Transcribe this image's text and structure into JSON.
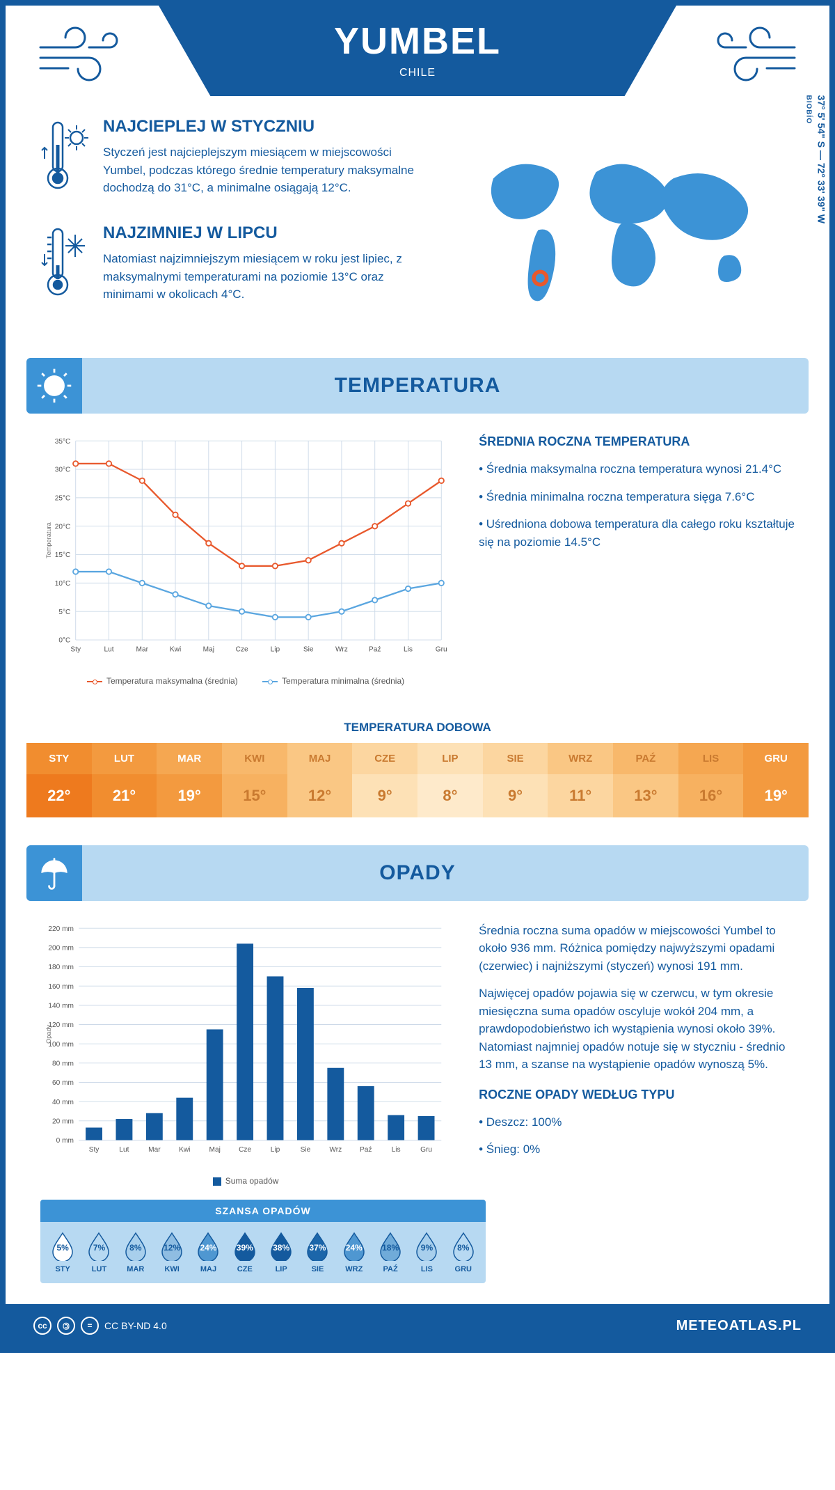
{
  "header": {
    "city": "YUMBEL",
    "country": "CHILE",
    "coords": "37° 5' 54\" S — 72° 33' 39\" W",
    "region": "BIOBÍO"
  },
  "facts": {
    "hot": {
      "title": "NAJCIEPLEJ W STYCZNIU",
      "text": "Styczeń jest najcieplejszym miesiącem w miejscowości Yumbel, podczas którego średnie temperatury maksymalne dochodzą do 31°C, a minimalne osiągają 12°C."
    },
    "cold": {
      "title": "NAJZIMNIEJ W LIPCU",
      "text": "Natomiast najzimniejszym miesiącem w roku jest lipiec, z maksymalnymi temperaturami na poziomie 13°C oraz minimami w okolicach 4°C."
    }
  },
  "sections": {
    "temperature": "TEMPERATURA",
    "precipitation": "OPADY"
  },
  "months": [
    "Sty",
    "Lut",
    "Mar",
    "Kwi",
    "Maj",
    "Cze",
    "Lip",
    "Sie",
    "Wrz",
    "Paź",
    "Lis",
    "Gru"
  ],
  "months_upper": [
    "STY",
    "LUT",
    "MAR",
    "KWI",
    "MAJ",
    "CZE",
    "LIP",
    "SIE",
    "WRZ",
    "PAŹ",
    "LIS",
    "GRU"
  ],
  "temp_chart": {
    "type": "line",
    "y_label": "Temperatura",
    "y_ticks": [
      0,
      5,
      10,
      15,
      20,
      25,
      30,
      35
    ],
    "y_tick_suffix": "°C",
    "ylim": [
      0,
      35
    ],
    "series": {
      "max": {
        "label": "Temperatura maksymalna (średnia)",
        "color": "#e8582c",
        "values": [
          31,
          31,
          28,
          22,
          17,
          13,
          13,
          14,
          17,
          20,
          24,
          28
        ]
      },
      "min": {
        "label": "Temperatura minimalna (średnia)",
        "color": "#5aa6e0",
        "values": [
          12,
          12,
          10,
          8,
          6,
          5,
          4,
          4,
          5,
          7,
          9,
          10
        ]
      }
    },
    "grid_color": "#ccd9e8",
    "background": "#ffffff",
    "line_width": 2.5,
    "marker_size": 4
  },
  "temp_info": {
    "title": "ŚREDNIA ROCZNA TEMPERATURA",
    "bullets": [
      "• Średnia maksymalna roczna temperatura wynosi 21.4°C",
      "• Średnia minimalna roczna temperatura sięga 7.6°C",
      "• Uśredniona dobowa temperatura dla całego roku kształtuje się na poziomie 14.5°C"
    ]
  },
  "daily": {
    "title": "TEMPERATURA DOBOWA",
    "values": [
      "22°",
      "21°",
      "19°",
      "15°",
      "12°",
      "9°",
      "8°",
      "9°",
      "11°",
      "13°",
      "16°",
      "19°"
    ],
    "header_colors": [
      "#f18d2f",
      "#f39a3f",
      "#f5a751",
      "#f8b86b",
      "#fac784",
      "#fcd6a0",
      "#fde1b6",
      "#fcd6a0",
      "#fac784",
      "#f8b86b",
      "#f5a751",
      "#f39a3f"
    ],
    "value_colors": [
      "#ee7a1e",
      "#f18d2f",
      "#f39a3f",
      "#f7b160",
      "#fac784",
      "#fde1b6",
      "#feeacb",
      "#fde1b6",
      "#fcd6a0",
      "#fac784",
      "#f7b160",
      "#f39a3f"
    ],
    "text_colors": [
      "#ffffff",
      "#ffffff",
      "#ffffff",
      "#c97a30",
      "#c97a30",
      "#c97a30",
      "#c97a30",
      "#c97a30",
      "#c97a30",
      "#c97a30",
      "#c97a30",
      "#ffffff"
    ]
  },
  "precip_chart": {
    "type": "bar",
    "y_label": "Opady",
    "y_ticks": [
      0,
      20,
      40,
      60,
      80,
      100,
      120,
      140,
      160,
      180,
      200,
      220
    ],
    "y_tick_suffix": " mm",
    "ylim": [
      0,
      220
    ],
    "bar_color": "#145a9e",
    "grid_color": "#ccd9e8",
    "bar_width": 0.55,
    "values": [
      13,
      22,
      28,
      44,
      115,
      204,
      170,
      158,
      75,
      56,
      26,
      25
    ],
    "legend_label": "Suma opadów"
  },
  "precip_info": {
    "para1": "Średnia roczna suma opadów w miejscowości Yumbel to około 936 mm. Różnica pomiędzy najwyższymi opadami (czerwiec) i najniższymi (styczeń) wynosi 191 mm.",
    "para2": "Najwięcej opadów pojawia się w czerwcu, w tym okresie miesięczna suma opadów oscyluje wokół 204 mm, a prawdopodobieństwo ich wystąpienia wynosi około 39%. Natomiast najmniej opadów notuje się w styczniu - średnio 13 mm, a szanse na wystąpienie opadów wynoszą 5%.",
    "type_title": "ROCZNE OPADY WEDŁUG TYPU",
    "type_bullets": [
      "• Deszcz: 100%",
      "• Śnieg: 0%"
    ]
  },
  "chance": {
    "title": "SZANSA OPADÓW",
    "values": [
      5,
      7,
      8,
      12,
      24,
      39,
      38,
      37,
      24,
      18,
      9,
      8
    ],
    "fill_colors": [
      "#ffffff",
      "#b7d9f2",
      "#a8cfec",
      "#8fbde2",
      "#4f97d1",
      "#145a9e",
      "#145a9e",
      "#1c66aa",
      "#4f97d1",
      "#70abd9",
      "#a8cfec",
      "#b7d9f2"
    ],
    "text_colors": [
      "#145a9e",
      "#145a9e",
      "#145a9e",
      "#145a9e",
      "#ffffff",
      "#ffffff",
      "#ffffff",
      "#ffffff",
      "#ffffff",
      "#145a9e",
      "#145a9e",
      "#145a9e"
    ],
    "outline": "#145a9e"
  },
  "footer": {
    "license": "CC BY-ND 4.0",
    "brand": "METEOATLAS.PL"
  },
  "colors": {
    "primary": "#145a9e",
    "light": "#b7d9f2",
    "accent": "#3c93d6",
    "marker": "#e8582c"
  }
}
